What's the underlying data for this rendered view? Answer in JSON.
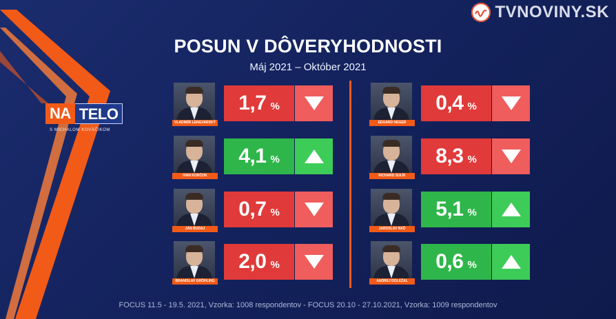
{
  "logo": {
    "text": "TVNOVINY.SK",
    "icon": "tv-wave-icon",
    "accent": "#e74c2e"
  },
  "show": {
    "na": "NA",
    "telo": "TELO",
    "host": "S MICHALOM KOVÁČIKOM"
  },
  "title": "POSUN V DÔVERYHODNOSTI",
  "subtitle": "Máj 2021   –  Október 2021",
  "colors": {
    "down": "#e03a3a",
    "down_arrow": "#ef5d5d",
    "up": "#2fb64a",
    "up_arrow": "#3dcc58",
    "accent": "#f25a18"
  },
  "left": [
    {
      "name": "VLADIMÍR LENGVARSKÝ",
      "value": "1,7",
      "unit": "%",
      "direction": "down"
    },
    {
      "name": "IVAN KORČOK",
      "value": "4,1",
      "unit": "%",
      "direction": "up"
    },
    {
      "name": "JÁN BUDAJ",
      "value": "0,7",
      "unit": "%",
      "direction": "down"
    },
    {
      "name": "BRANISLAV GRÖHLING",
      "value": "2,0",
      "unit": "%",
      "direction": "down"
    }
  ],
  "right": [
    {
      "name": "EDUARD HEGER",
      "value": "0,4",
      "unit": "%",
      "direction": "down"
    },
    {
      "name": "RICHARD SULÍK",
      "value": "8,3",
      "unit": "%",
      "direction": "down"
    },
    {
      "name": "JAROSLAV NAĎ",
      "value": "5,1",
      "unit": "%",
      "direction": "up"
    },
    {
      "name": "ANDREJ DOLEŽAL",
      "value": "0,6",
      "unit": "%",
      "direction": "up"
    }
  ],
  "footer": "FOCUS 11.5 - 19.5. 2021, Vzorka: 1008 respondentov - FOCUS 20.10 - 27.10.2021, Vzorka: 1009 respondentov"
}
